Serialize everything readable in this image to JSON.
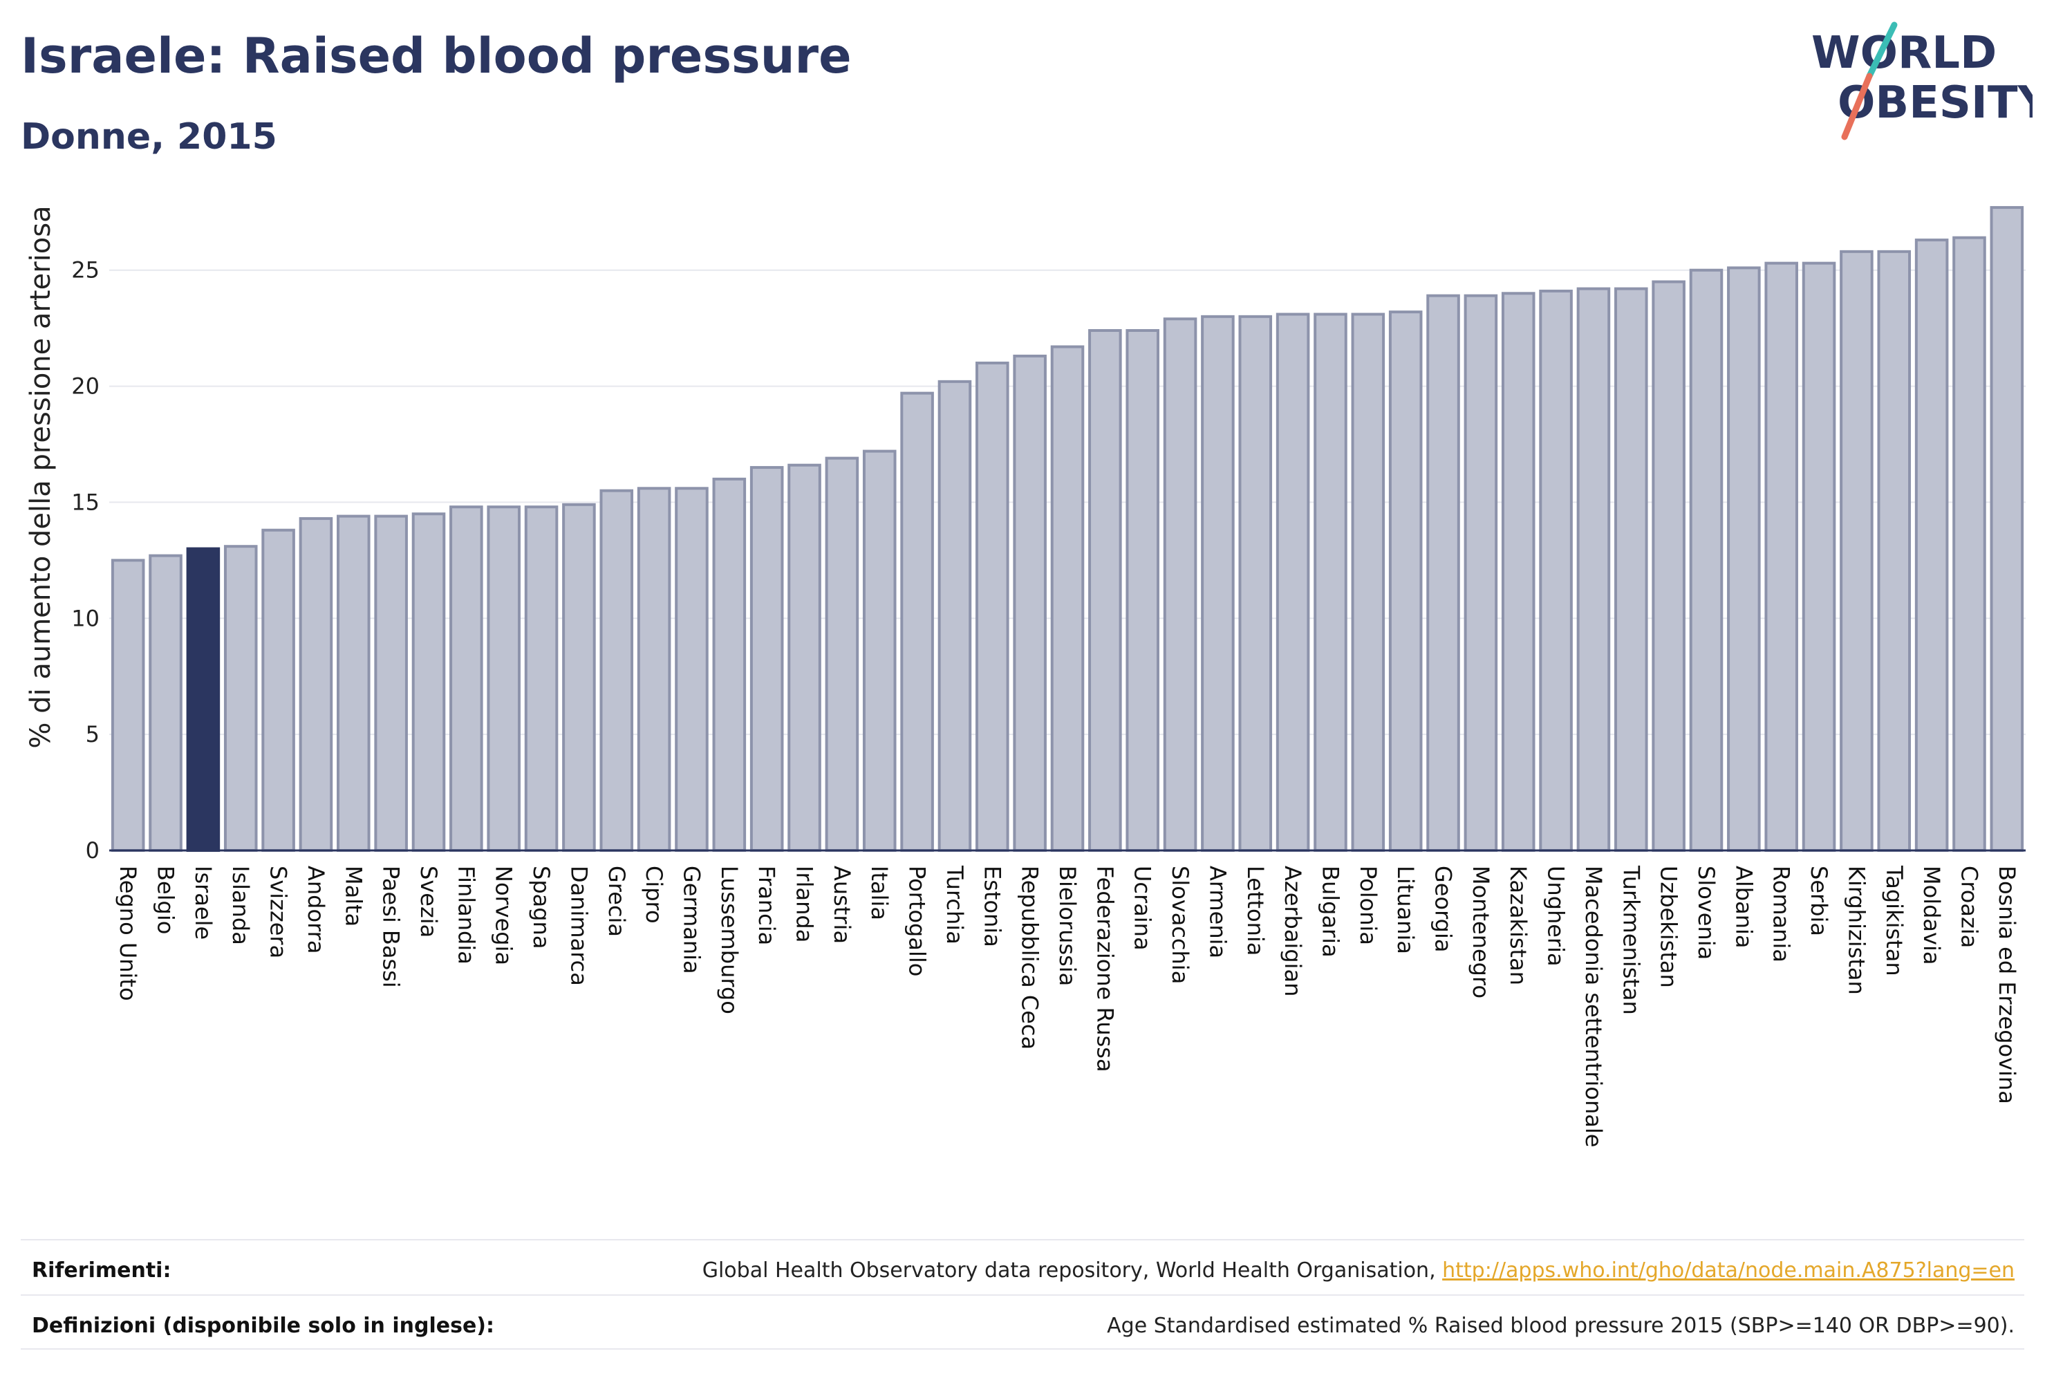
{
  "header": {
    "title": "Israele: Raised blood pressure",
    "subtitle": "Donne, 2015"
  },
  "logo": {
    "line1": "WORLD",
    "line2": "OBESITY",
    "colors": {
      "text": "#2b3660",
      "teal": "#3bbdb5",
      "coral": "#e8705a"
    }
  },
  "colors": {
    "bar_fill": "#bec2d1",
    "bar_stroke": "#8d93ab",
    "highlight": "#2b3660",
    "grid": "#e6e8ee",
    "axis": "#2b3660"
  },
  "chart_data": {
    "type": "bar",
    "title": "",
    "xlabel": "",
    "ylabel": "% di aumento della pressione arteriosa",
    "ylim": [
      0,
      28
    ],
    "yticks": [
      0,
      5,
      10,
      15,
      20,
      25
    ],
    "grid": true,
    "highlight": "Israele",
    "categories": [
      "Regno Unito",
      "Belgio",
      "Israele",
      "Islanda",
      "Svizzera",
      "Andorra",
      "Malta",
      "Paesi Bassi",
      "Svezia",
      "Finlandia",
      "Norvegia",
      "Spagna",
      "Danimarca",
      "Grecia",
      "Cipro",
      "Germania",
      "Lussemburgo",
      "Francia",
      "Irlanda",
      "Austria",
      "Italia",
      "Portogallo",
      "Turchia",
      "Estonia",
      "Repubblica Ceca",
      "Bielorussia",
      "Federazione Russa",
      "Ucraina",
      "Slovacchia",
      "Armenia",
      "Lettonia",
      "Azerbaigian",
      "Bulgaria",
      "Polonia",
      "Lituania",
      "Georgia",
      "Montenegro",
      "Kazakistan",
      "Ungheria",
      "Macedonia settentrionale",
      "Turkmenistan",
      "Uzbekistan",
      "Slovenia",
      "Albania",
      "Romania",
      "Serbia",
      "Kirghizistan",
      "Tagikistan",
      "Moldavia",
      "Croazia",
      "Bosnia ed Erzegovina"
    ],
    "values": [
      12.5,
      12.7,
      13.0,
      13.1,
      13.8,
      14.3,
      14.4,
      14.4,
      14.5,
      14.8,
      14.8,
      14.8,
      14.9,
      15.5,
      15.6,
      15.6,
      16.0,
      16.5,
      16.6,
      16.9,
      17.2,
      19.7,
      20.2,
      21.0,
      21.3,
      21.7,
      22.4,
      22.4,
      22.9,
      23.0,
      23.0,
      23.1,
      23.1,
      23.1,
      23.2,
      23.9,
      23.9,
      24.0,
      24.1,
      24.2,
      24.2,
      24.5,
      25.0,
      25.1,
      25.3,
      25.3,
      25.8,
      25.8,
      26.3,
      26.4,
      27.7
    ]
  },
  "footer": {
    "references_label": "Riferimenti:",
    "references_text": "Global Health Observatory data repository, World Health Organisation, ",
    "references_link": "http://apps.who.int/gho/data/node.main.A875?lang=en",
    "definitions_label": "Definizioni (disponibile solo in inglese):",
    "definitions_text": "Age Standardised estimated % Raised blood pressure 2015 (SBP>=140 OR DBP>=90)."
  }
}
